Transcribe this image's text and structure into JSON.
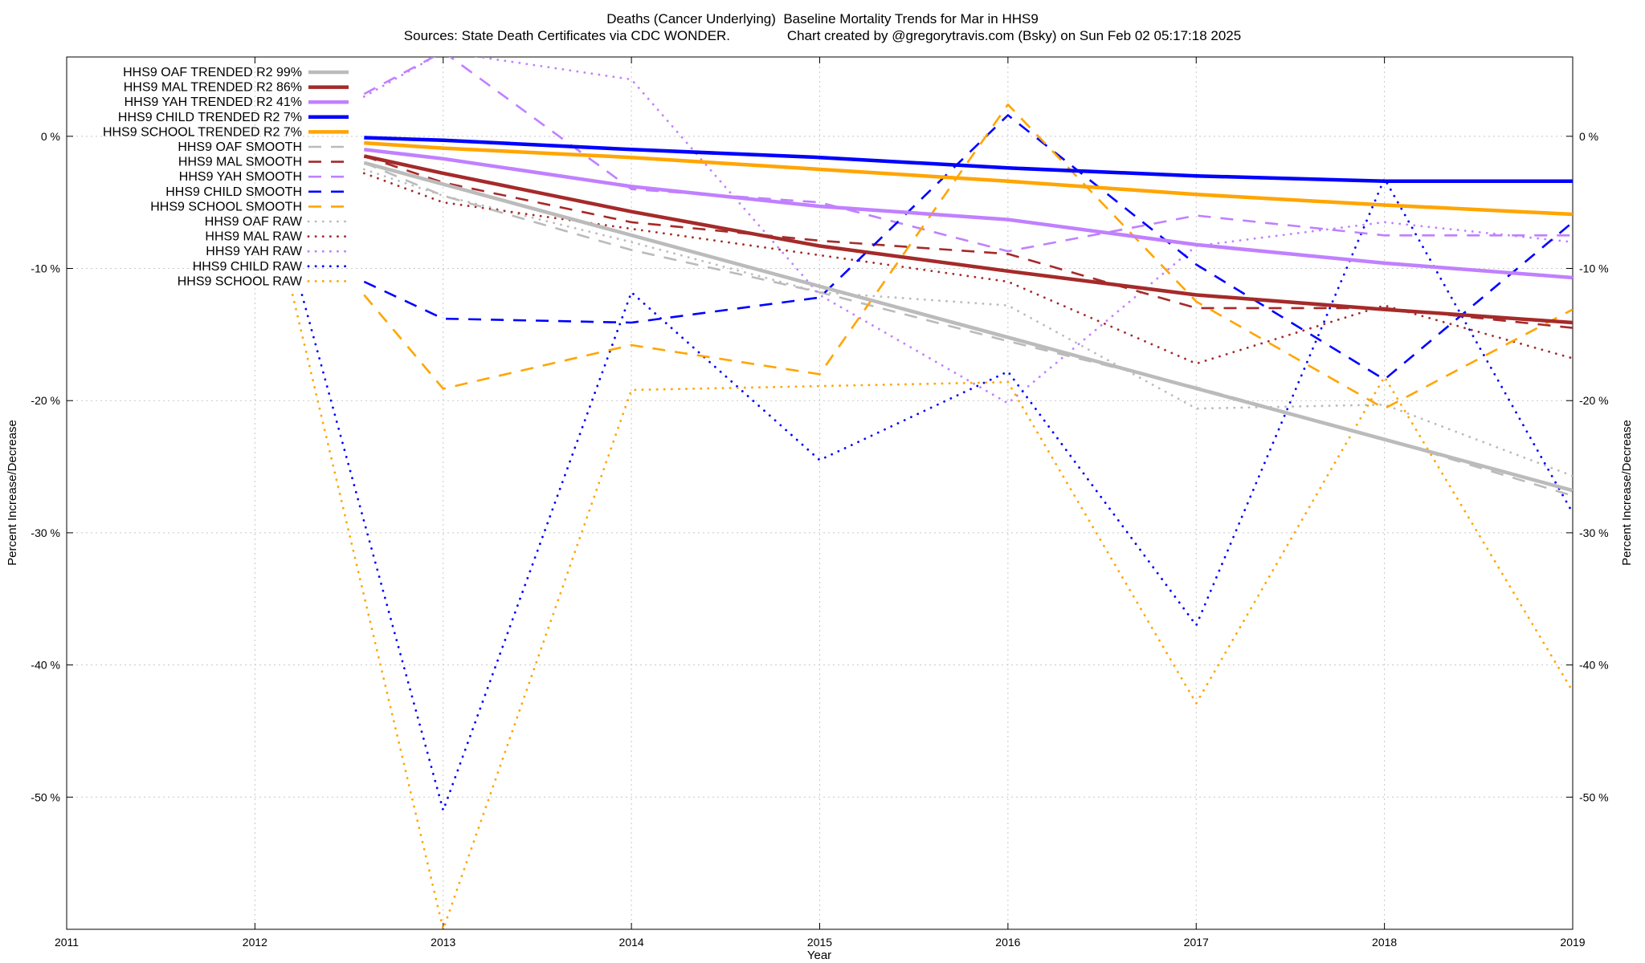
{
  "chart_data": {
    "type": "line",
    "title": "Deaths (Cancer Underlying)  Baseline Mortality Trends for Mar in HHS9",
    "subtitle": "Sources: State Death Certificates via CDC WONDER.               Chart created by @gregorytravis.com (Bsky) on Sun Feb 02 05:17:18 2025",
    "xlabel": "Year",
    "ylabel": "Percent Increase/Decrease",
    "y2label": "Percent Increase/Decrease",
    "xlim": [
      2011,
      2019
    ],
    "ylim": [
      -60,
      6
    ],
    "x_ticks": [
      "2011",
      "2012",
      "2013",
      "2014",
      "2015",
      "2016",
      "2017",
      "2018",
      "2019"
    ],
    "y_ticks": [
      {
        "value": 0,
        "label": "0 %"
      },
      {
        "value": -10,
        "label": "-10 %"
      },
      {
        "value": -20,
        "label": "-20 %"
      },
      {
        "value": -30,
        "label": "-30 %"
      },
      {
        "value": -40,
        "label": "-40 %"
      },
      {
        "value": -50,
        "label": "-50 %"
      }
    ],
    "grid": true,
    "legend_position": "top-left",
    "series": [
      {
        "name": "HHS9 OAF TRENDED R2",
        "r2": "99%",
        "style": "solid",
        "color": "#bbbbbb",
        "points": [
          [
            2012.58,
            -2.0
          ],
          [
            2019,
            -26.8
          ]
        ]
      },
      {
        "name": "HHS9 MAL TRENDED R2",
        "r2": "86%",
        "style": "solid",
        "color": "#a52a2a",
        "points": [
          [
            2012.58,
            -1.5
          ],
          [
            2013,
            -2.8
          ],
          [
            2014,
            -5.7
          ],
          [
            2015,
            -8.3
          ],
          [
            2016,
            -10.2
          ],
          [
            2017,
            -12.0
          ],
          [
            2018,
            -13.1
          ],
          [
            2019,
            -14.1
          ]
        ]
      },
      {
        "name": "HHS9 YAH TRENDED R2",
        "r2": "41%",
        "style": "solid",
        "color": "#c080ff",
        "points": [
          [
            2012.58,
            -1.0
          ],
          [
            2013,
            -1.7
          ],
          [
            2014,
            -3.8
          ],
          [
            2015,
            -5.3
          ],
          [
            2016,
            -6.3
          ],
          [
            2017,
            -8.2
          ],
          [
            2018,
            -9.6
          ],
          [
            2019,
            -10.7
          ]
        ]
      },
      {
        "name": "HHS9 CHILD TRENDED R2",
        "r2": "7%",
        "style": "solid",
        "color": "#0000ff",
        "points": [
          [
            2012.58,
            -0.1
          ],
          [
            2013,
            -0.3
          ],
          [
            2014,
            -1.0
          ],
          [
            2015,
            -1.6
          ],
          [
            2016,
            -2.4
          ],
          [
            2017,
            -3.0
          ],
          [
            2018,
            -3.4
          ],
          [
            2019,
            -3.4
          ]
        ]
      },
      {
        "name": "HHS9 SCHOOL TRENDED R2",
        "r2": "7%",
        "style": "solid",
        "color": "#ffa500",
        "points": [
          [
            2012.58,
            -0.5
          ],
          [
            2013,
            -0.9
          ],
          [
            2014,
            -1.6
          ],
          [
            2015,
            -2.5
          ],
          [
            2016,
            -3.4
          ],
          [
            2017,
            -4.4
          ],
          [
            2018,
            -5.2
          ],
          [
            2019,
            -5.9
          ]
        ]
      },
      {
        "name": "HHS9 OAF SMOOTH",
        "r2": "",
        "style": "dashed",
        "color": "#bbbbbb",
        "points": [
          [
            2012.58,
            -2.0
          ],
          [
            2013,
            -4.5
          ],
          [
            2014,
            -8.6
          ],
          [
            2015,
            -11.8
          ],
          [
            2016,
            -15.5
          ],
          [
            2017,
            -19.0
          ],
          [
            2018,
            -22.9
          ],
          [
            2019,
            -27.2
          ]
        ]
      },
      {
        "name": "HHS9 MAL SMOOTH",
        "r2": "",
        "style": "dashed",
        "color": "#a52a2a",
        "points": [
          [
            2012.58,
            -1.5
          ],
          [
            2013,
            -3.5
          ],
          [
            2014,
            -6.5
          ],
          [
            2015,
            -7.9
          ],
          [
            2016,
            -8.9
          ],
          [
            2017,
            -13.0
          ],
          [
            2018,
            -13.0
          ],
          [
            2019,
            -14.5
          ]
        ]
      },
      {
        "name": "HHS9 YAH SMOOTH",
        "r2": "",
        "style": "dashed",
        "color": "#c080ff",
        "points": [
          [
            2012.58,
            3.2
          ],
          [
            2013,
            6.4
          ],
          [
            2014,
            -4.0
          ],
          [
            2015,
            -5.0
          ],
          [
            2016,
            -8.7
          ],
          [
            2017,
            -6.0
          ],
          [
            2018,
            -7.5
          ],
          [
            2019,
            -7.5
          ]
        ]
      },
      {
        "name": "HHS9 CHILD SMOOTH",
        "r2": "",
        "style": "dashed",
        "color": "#0000ff",
        "points": [
          [
            2012.58,
            -11.0
          ],
          [
            2013,
            -13.8
          ],
          [
            2014,
            -14.1
          ],
          [
            2015,
            -12.2
          ],
          [
            2016,
            1.6
          ],
          [
            2017,
            -9.7
          ],
          [
            2018,
            -18.4
          ],
          [
            2019,
            -6.5
          ]
        ]
      },
      {
        "name": "HHS9 SCHOOL SMOOTH",
        "r2": "",
        "style": "dashed",
        "color": "#ffa500",
        "points": [
          [
            2012.58,
            -12.0
          ],
          [
            2013,
            -19.1
          ],
          [
            2014,
            -15.8
          ],
          [
            2015,
            -18.0
          ],
          [
            2016,
            2.4
          ],
          [
            2017,
            -12.5
          ],
          [
            2018,
            -20.6
          ],
          [
            2019,
            -13.1
          ]
        ]
      },
      {
        "name": "HHS9 OAF RAW",
        "r2": "",
        "style": "dotted",
        "color": "#bbbbbb",
        "points": [
          [
            2012.58,
            -2.5
          ],
          [
            2013,
            -4.5
          ],
          [
            2014,
            -8.0
          ],
          [
            2015,
            -11.8
          ],
          [
            2016,
            -12.8
          ],
          [
            2017,
            -20.6
          ],
          [
            2018,
            -20.3
          ],
          [
            2019,
            -25.7
          ]
        ]
      },
      {
        "name": "HHS9 MAL RAW",
        "r2": "",
        "style": "dotted",
        "color": "#a52a2a",
        "points": [
          [
            2012.58,
            -2.8
          ],
          [
            2013,
            -5.0
          ],
          [
            2014,
            -7.0
          ],
          [
            2015,
            -9.0
          ],
          [
            2016,
            -11.0
          ],
          [
            2017,
            -17.2
          ],
          [
            2018,
            -12.8
          ],
          [
            2019,
            -16.8
          ]
        ]
      },
      {
        "name": "HHS9 YAH RAW",
        "r2": "",
        "style": "dotted",
        "color": "#c080ff",
        "points": [
          [
            2012.58,
            3.0
          ],
          [
            2013,
            6.4
          ],
          [
            2014,
            4.3
          ],
          [
            2015,
            -12.0
          ],
          [
            2016,
            -20.2
          ],
          [
            2017,
            -8.3
          ],
          [
            2018,
            -6.5
          ],
          [
            2019,
            -8.0
          ]
        ]
      },
      {
        "name": "HHS9 CHILD RAW",
        "r2": "",
        "style": "dotted",
        "color": "#0000ff",
        "points": [
          [
            2012.25,
            -12.0
          ],
          [
            2013,
            -51.0
          ],
          [
            2014,
            -11.8
          ],
          [
            2015,
            -24.5
          ],
          [
            2016,
            -17.8
          ],
          [
            2017,
            -37.0
          ],
          [
            2018,
            -3.2
          ],
          [
            2019,
            -28.5
          ]
        ]
      },
      {
        "name": "HHS9 SCHOOL RAW",
        "r2": "",
        "style": "dotted",
        "color": "#ffa500",
        "points": [
          [
            2012.2,
            -12.0
          ],
          [
            2013,
            -60.0
          ],
          [
            2014,
            -19.2
          ],
          [
            2015,
            -18.9
          ],
          [
            2016,
            -18.6
          ],
          [
            2017,
            -42.9
          ],
          [
            2018,
            -18.2
          ],
          [
            2019,
            -42.0
          ]
        ]
      }
    ]
  }
}
